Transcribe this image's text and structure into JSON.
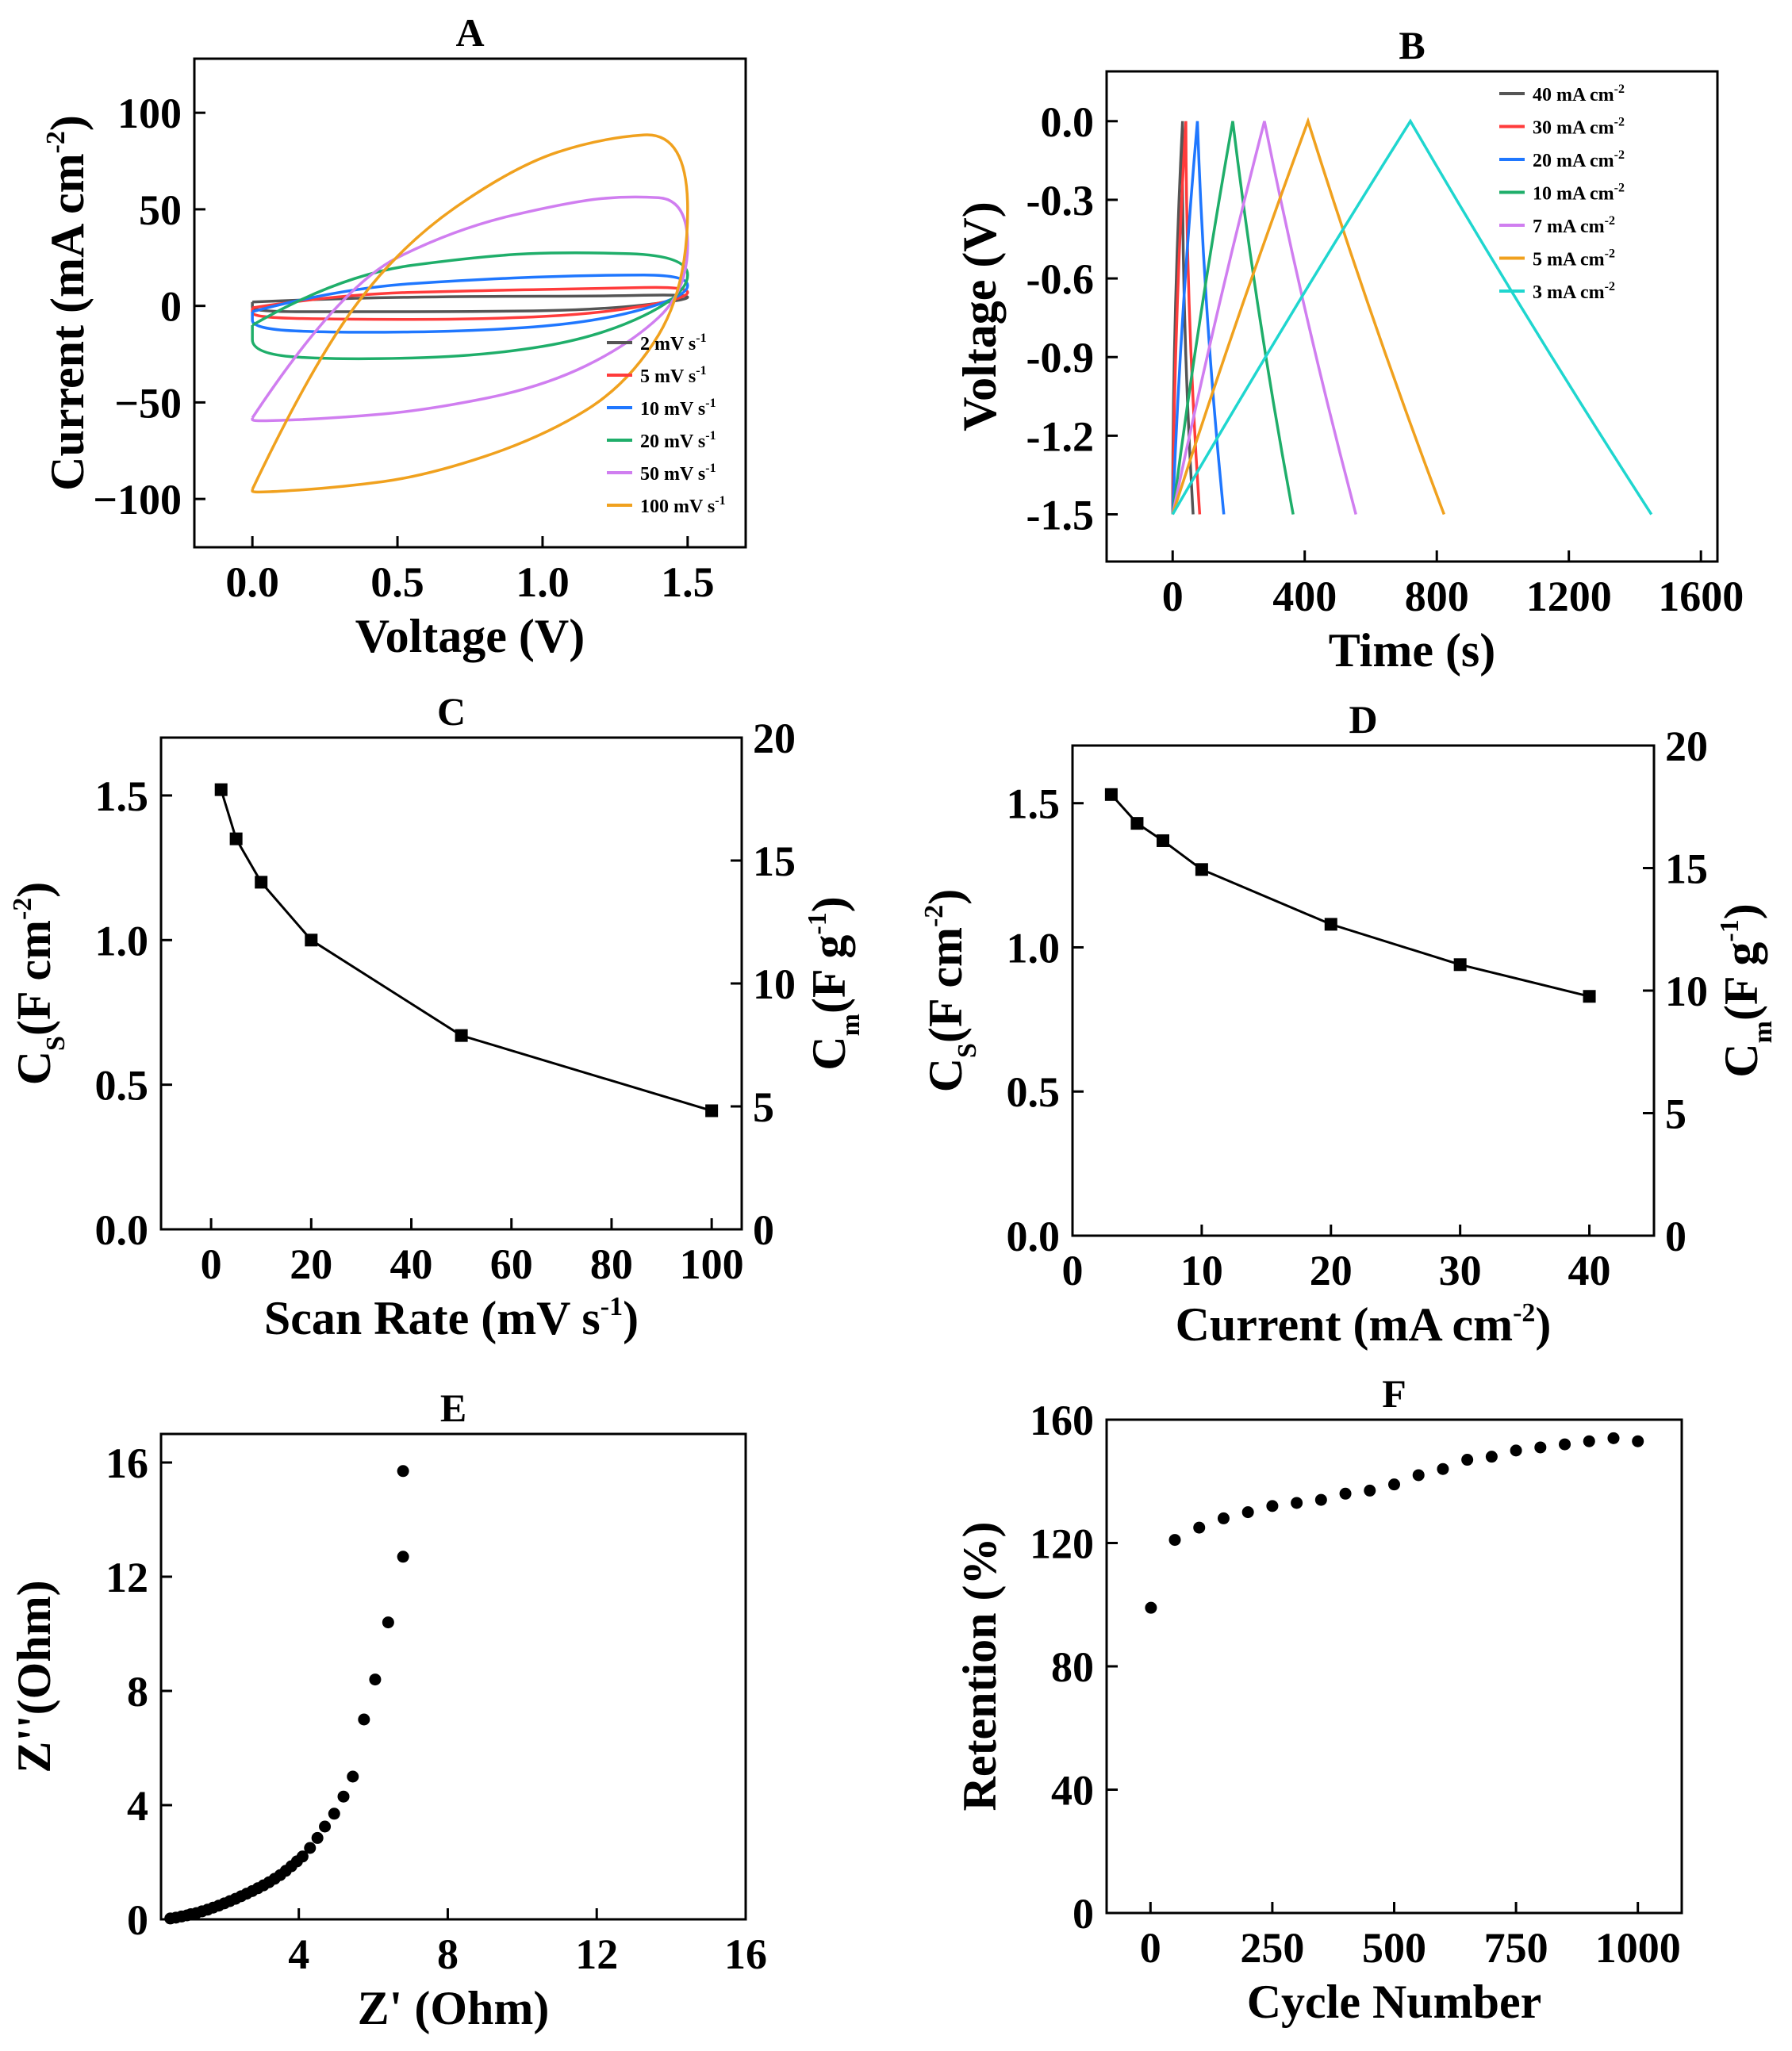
{
  "chart_data": [
    {
      "id": "A",
      "type": "line",
      "title": "A",
      "xlabel": "Voltage (V)",
      "ylabel": "Current (mA cm",
      "ylabel_sup": "-2",
      "ylabel_end": ")",
      "xlim": [
        -0.2,
        1.7
      ],
      "ylim": [
        -125,
        128
      ],
      "xticks": [
        0.0,
        0.5,
        1.0,
        1.5
      ],
      "xtick_labels": [
        "0.0",
        "0.5",
        "1.0",
        "1.5"
      ],
      "yticks": [
        -100,
        -50,
        0,
        50,
        100
      ],
      "ytick_labels": [
        "−100",
        "−50",
        "0",
        "50",
        "100"
      ],
      "legend_position": "bottom-right",
      "series": [
        {
          "name": "2 mV s",
          "sup": "-1",
          "color": "#555555",
          "upper": [
            [
              0.0,
              2
            ],
            [
              0.3,
              4
            ],
            [
              0.8,
              5
            ],
            [
              1.2,
              5
            ],
            [
              1.5,
              6
            ]
          ],
          "lower": [
            [
              1.5,
              3
            ],
            [
              1.2,
              -2
            ],
            [
              0.8,
              -3
            ],
            [
              0.3,
              -3
            ],
            [
              0.0,
              -3
            ]
          ]
        },
        {
          "name": "5 mV s",
          "sup": "-1",
          "color": "#ff3b3b",
          "upper": [
            [
              0.0,
              -1
            ],
            [
              0.3,
              6
            ],
            [
              0.8,
              8
            ],
            [
              1.2,
              9
            ],
            [
              1.5,
              10
            ]
          ],
          "lower": [
            [
              1.5,
              4
            ],
            [
              1.2,
              -4
            ],
            [
              0.8,
              -7
            ],
            [
              0.3,
              -7
            ],
            [
              0.0,
              -6
            ]
          ]
        },
        {
          "name": "10 mV s",
          "sup": "-1",
          "color": "#1f77ff",
          "upper": [
            [
              0.0,
              -3
            ],
            [
              0.3,
              9
            ],
            [
              0.8,
              14
            ],
            [
              1.2,
              16
            ],
            [
              1.5,
              16
            ]
          ],
          "lower": [
            [
              1.5,
              5
            ],
            [
              1.2,
              -8
            ],
            [
              0.8,
              -13
            ],
            [
              0.3,
              -14
            ],
            [
              0.0,
              -12
            ]
          ]
        },
        {
          "name": "20 mV s",
          "sup": "-1",
          "color": "#1fae6a",
          "upper": [
            [
              0.0,
              -10
            ],
            [
              0.3,
              16
            ],
            [
              0.8,
              26
            ],
            [
              1.1,
              28
            ],
            [
              1.5,
              26
            ]
          ],
          "lower": [
            [
              1.5,
              6
            ],
            [
              1.2,
              -16
            ],
            [
              0.8,
              -26
            ],
            [
              0.3,
              -28
            ],
            [
              0.0,
              -25
            ]
          ]
        },
        {
          "name": "50 mV s",
          "sup": "-1",
          "color": "#d07ef0",
          "upper": [
            [
              0.0,
              -58
            ],
            [
              0.3,
              10
            ],
            [
              0.7,
              40
            ],
            [
              1.1,
              54
            ],
            [
              1.3,
              57
            ],
            [
              1.5,
              55
            ]
          ],
          "lower": [
            [
              1.5,
              8
            ],
            [
              1.3,
              -20
            ],
            [
              1.0,
              -42
            ],
            [
              0.6,
              -54
            ],
            [
              0.3,
              -58
            ],
            [
              0.0,
              -60
            ]
          ]
        },
        {
          "name": "100 mV s",
          "sup": "-1",
          "color": "#f0a11e",
          "upper": [
            [
              0.0,
              -95
            ],
            [
              0.2,
              -32
            ],
            [
              0.5,
              30
            ],
            [
              0.9,
              72
            ],
            [
              1.2,
              87
            ],
            [
              1.5,
              90
            ]
          ],
          "lower": [
            [
              1.5,
              10
            ],
            [
              1.3,
              -40
            ],
            [
              1.0,
              -68
            ],
            [
              0.6,
              -88
            ],
            [
              0.3,
              -94
            ],
            [
              0.0,
              -97
            ]
          ]
        }
      ]
    },
    {
      "id": "B",
      "type": "line",
      "title": "B",
      "xlabel": "Time (s)",
      "ylabel": "Voltage (V)",
      "xlim": [
        -200,
        1650
      ],
      "ylim": [
        -1.68,
        0.19
      ],
      "xticks": [
        0,
        400,
        800,
        1200,
        1600
      ],
      "xtick_labels": [
        "0",
        "400",
        "800",
        "1200",
        "1600"
      ],
      "yticks": [
        -1.5,
        -1.2,
        -0.9,
        -0.6,
        -0.3,
        0.0
      ],
      "ytick_labels": [
        "-1.5",
        "-1.2",
        "-0.9",
        "-0.6",
        "-0.3",
        "0.0"
      ],
      "legend_position": "top-right",
      "series": [
        {
          "name": "40 mA cm",
          "sup": "-2",
          "color": "#555555",
          "points": [
            [
              0,
              -1.5
            ],
            [
              30,
              0.0
            ],
            [
              62,
              -1.5
            ]
          ]
        },
        {
          "name": "30 mA cm",
          "sup": "-2",
          "color": "#ff3b3b",
          "points": [
            [
              0,
              -1.5
            ],
            [
              40,
              0.0
            ],
            [
              82,
              -1.5
            ]
          ]
        },
        {
          "name": "20 mA cm",
          "sup": "-2",
          "color": "#1f77ff",
          "points": [
            [
              0,
              -1.5
            ],
            [
              75,
              0.0
            ],
            [
              155,
              -1.5
            ]
          ]
        },
        {
          "name": "10 mA cm",
          "sup": "-2",
          "color": "#1fae6a",
          "points": [
            [
              0,
              -1.5
            ],
            [
              182,
              0.0
            ],
            [
              365,
              -1.5
            ]
          ]
        },
        {
          "name": "7 mA cm",
          "sup": "-2",
          "color": "#d07ef0",
          "points": [
            [
              0,
              -1.5
            ],
            [
              278,
              0.0
            ],
            [
              555,
              -1.5
            ]
          ]
        },
        {
          "name": "5 mA cm",
          "sup": "-2",
          "color": "#f0a11e",
          "points": [
            [
              0,
              -1.5
            ],
            [
              410,
              0.0
            ],
            [
              822,
              -1.5
            ]
          ]
        },
        {
          "name": "3 mA cm",
          "sup": "-2",
          "color": "#1fd6cf",
          "points": [
            [
              0,
              -1.5
            ],
            [
              720,
              0.0
            ],
            [
              1450,
              -1.5
            ]
          ]
        }
      ]
    },
    {
      "id": "C",
      "type": "line",
      "title": "C",
      "xlabel": "Scan Rate (mV s",
      "xlabel_sup": "-1",
      "xlabel_end": ")",
      "ylabel_main": "C",
      "ylabel_sub": "S",
      "ylabel_rest": "(F cm",
      "ylabel_sup": "-2",
      "ylabel_end": ")",
      "y2label_main": "C",
      "y2label_sub": "m",
      "y2label_rest": "(F g",
      "y2label_sup": "-1",
      "y2label_end": ")",
      "xlim": [
        -10,
        106
      ],
      "ylim": [
        0,
        1.7
      ],
      "y2lim": [
        0,
        20
      ],
      "xticks": [
        0,
        20,
        40,
        60,
        80,
        100
      ],
      "xtick_labels": [
        "0",
        "20",
        "40",
        "60",
        "80",
        "100"
      ],
      "yticks": [
        0.0,
        0.5,
        1.0,
        1.5
      ],
      "ytick_labels": [
        "0.0",
        "0.5",
        "1.0",
        "1.5"
      ],
      "y2ticks": [
        0,
        5,
        10,
        15,
        20
      ],
      "y2tick_labels": [
        "0",
        "5",
        "10",
        "15",
        "20"
      ],
      "x": [
        2,
        5,
        10,
        20,
        50,
        100
      ],
      "y": [
        1.52,
        1.35,
        1.2,
        1.0,
        0.67,
        0.41
      ]
    },
    {
      "id": "D",
      "type": "line",
      "title": "D",
      "xlabel": "Current (mA cm",
      "xlabel_sup": "-2",
      "xlabel_end": ")",
      "ylabel_main": "C",
      "ylabel_sub": "S",
      "ylabel_rest": "(F cm",
      "ylabel_sup": "-2",
      "ylabel_end": ")",
      "y2label_main": "C",
      "y2label_sub": "m",
      "y2label_rest": "(F g",
      "y2label_sup": "-1",
      "y2label_end": ")",
      "xlim": [
        0,
        45
      ],
      "ylim": [
        0,
        1.7
      ],
      "y2lim": [
        0,
        20
      ],
      "xticks": [
        0,
        10,
        20,
        30,
        40
      ],
      "xtick_labels": [
        "0",
        "10",
        "20",
        "30",
        "40"
      ],
      "yticks": [
        0.0,
        0.5,
        1.0,
        1.5
      ],
      "ytick_labels": [
        "0.0",
        "0.5",
        "1.0",
        "1.5"
      ],
      "y2ticks": [
        0,
        5,
        10,
        15,
        20
      ],
      "y2tick_labels": [
        "0",
        "5",
        "10",
        "15",
        "20"
      ],
      "x": [
        3,
        5,
        7,
        10,
        20,
        30,
        40
      ],
      "y": [
        1.53,
        1.43,
        1.37,
        1.27,
        1.08,
        0.94,
        0.83
      ]
    },
    {
      "id": "E",
      "type": "scatter",
      "title": "E",
      "xlabel": "Z' (Ohm)",
      "ylabel": "Z''(Ohm)",
      "xlim": [
        0.3,
        16
      ],
      "ylim": [
        0,
        17
      ],
      "xticks": [
        4,
        8,
        12,
        16
      ],
      "xtick_labels": [
        "4",
        "8",
        "12",
        "16"
      ],
      "yticks": [
        0,
        4,
        8,
        12,
        16
      ],
      "ytick_labels": [
        "0",
        "4",
        "8",
        "12",
        "16"
      ],
      "x": [
        0.55,
        0.7,
        0.85,
        1.0,
        1.1,
        1.25,
        1.4,
        1.55,
        1.7,
        1.85,
        2.0,
        2.15,
        2.3,
        2.45,
        2.6,
        2.75,
        2.9,
        3.05,
        3.2,
        3.35,
        3.5,
        3.65,
        3.8,
        3.95,
        4.1,
        4.3,
        4.5,
        4.7,
        4.95,
        5.2,
        5.45,
        5.75,
        6.05,
        6.4,
        6.8
      ],
      "y": [
        0.03,
        0.06,
        0.1,
        0.14,
        0.18,
        0.22,
        0.28,
        0.34,
        0.41,
        0.48,
        0.56,
        0.64,
        0.72,
        0.81,
        0.9,
        0.99,
        1.09,
        1.19,
        1.3,
        1.42,
        1.55,
        1.7,
        1.86,
        2.03,
        2.2,
        2.5,
        2.85,
        3.25,
        3.7,
        4.3,
        5.0,
        7.0,
        8.4,
        10.4,
        12.7
      ],
      "extra_points": [
        [
          6.8,
          15.7
        ]
      ]
    },
    {
      "id": "F",
      "type": "scatter",
      "title": "F",
      "xlabel": "Cycle Number",
      "ylabel": "Retention (%)",
      "xlim": [
        -90,
        1090
      ],
      "ylim": [
        0,
        160
      ],
      "xticks": [
        0,
        250,
        500,
        750,
        1000
      ],
      "xtick_labels": [
        "0",
        "250",
        "500",
        "750",
        "1000"
      ],
      "yticks": [
        0,
        40,
        80,
        120,
        160
      ],
      "ytick_labels": [
        "0",
        "40",
        "80",
        "120",
        "160"
      ],
      "x": [
        1,
        50,
        100,
        150,
        200,
        250,
        300,
        350,
        400,
        450,
        500,
        550,
        600,
        650,
        700,
        750,
        800,
        850,
        900,
        950,
        1000
      ],
      "y": [
        99,
        121,
        125,
        128,
        130,
        132,
        133,
        134,
        136,
        137,
        139,
        142,
        144,
        147,
        148,
        150,
        151,
        152,
        153,
        154,
        153
      ]
    }
  ]
}
